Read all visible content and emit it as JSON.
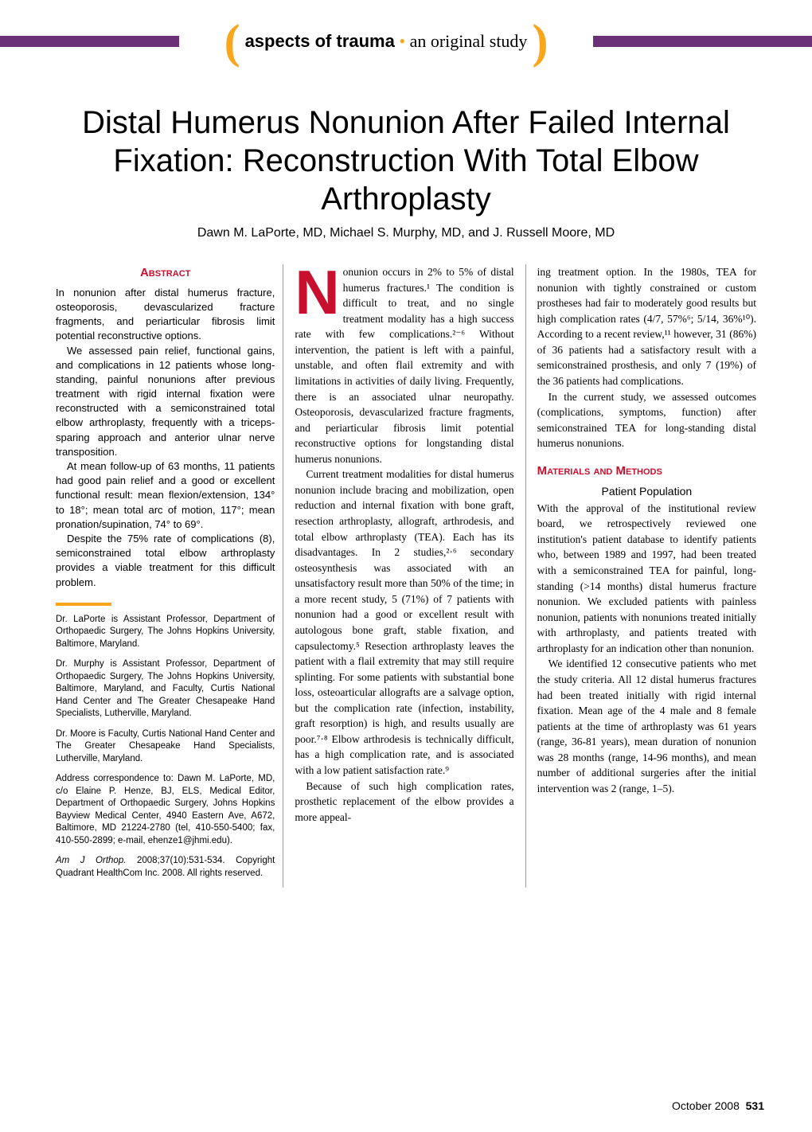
{
  "header": {
    "section_bold": "aspects of trauma",
    "section_light": "an original study",
    "bullet": "•",
    "bar_color": "#6b3077",
    "bracket_color": "#faa61a"
  },
  "title": "Distal Humerus Nonunion After Failed Internal Fixation: Reconstruction With Total Elbow Arthroplasty",
  "authors": "Dawn M. LaPorte, MD, Michael S. Murphy, MD, and J. Russell Moore, MD",
  "abstract": {
    "heading": "Abstract",
    "p1": "In nonunion after distal humerus fracture, osteoporosis, devascularized fracture fragments, and periarticular fibrosis limit potential reconstructive options.",
    "p2": "We assessed pain relief, functional gains, and complications in 12 patients whose long-standing, painful nonunions after previous treatment with rigid internal fixation were reconstructed with a semiconstrained total elbow arthroplasty, frequently with a triceps-sparing approach and anterior ulnar nerve transposition.",
    "p3": "At mean follow-up of 63 months, 11 patients had good pain relief and a good or excellent functional result: mean flexion/extension, 134° to 18°; mean total arc of motion, 117°; mean pronation/supination, 74° to 69°.",
    "p4": "Despite the 75% rate of complications (8), semiconstrained total elbow arthroplasty provides a viable treatment for this difficult problem."
  },
  "affiliations": {
    "a1": "Dr. LaPorte is Assistant Professor, Department of Orthopaedic Surgery, The Johns Hopkins University, Baltimore, Maryland.",
    "a2": "Dr. Murphy is Assistant Professor, Department of Orthopaedic Surgery, The Johns Hopkins University, Baltimore, Maryland, and Faculty, Curtis National Hand Center and The Greater Chesapeake Hand Specialists, Lutherville, Maryland.",
    "a3": "Dr. Moore is Faculty, Curtis National Hand Center and The Greater Chesapeake Hand Specialists, Lutherville, Maryland.",
    "a4": "Address correspondence to: Dawn M. LaPorte, MD, c/o Elaine P. Henze, BJ, ELS, Medical Editor, Department of Orthopaedic Surgery, Johns Hopkins Bayview Medical Center, 4940 Eastern Ave, A672, Baltimore, MD 21224-2780 (tel, 410-550-5400; fax, 410-550-2899; e-mail, ehenze1@jhmi.edu).",
    "a5_cite": "Am J Orthop.",
    "a5_rest": " 2008;37(10):531-534. Copyright Quadrant HealthCom Inc. 2008. All rights reserved."
  },
  "body": {
    "dropcap": "N",
    "mid_p1": "onunion occurs in 2% to 5% of distal humerus fractures.¹ The condition is difficult to treat, and no single treatment modality has a high success rate with few complications.²⁻⁶ Without intervention, the patient is left with a painful, unstable, and often flail extremity and with limitations in activities of daily living. Frequently, there is an associated ulnar neuropathy. Osteoporosis, devascularized fracture fragments, and periarticular fibrosis limit potential reconstructive options for longstanding distal humerus nonunions.",
    "mid_p2": "Current treatment modalities for distal humerus nonunion include bracing and mobilization, open reduction and internal fixation with bone graft, resection arthroplasty, allograft, arthrodesis, and total elbow arthroplasty (TEA). Each has its disadvantages. In 2 studies,²·⁶ secondary osteosynthesis was associated with an unsatisfactory result more than 50% of the time; in a more recent study, 5 (71%) of 7 patients with nonunion had a good or excellent result with autologous bone graft, stable fixation, and capsulectomy.⁵ Resection arthroplasty leaves the patient with a flail extremity that may still require splinting. For some patients with substantial bone loss, osteoarticular allografts are a salvage option, but the complication rate (infection, instability, graft resorption) is high, and results usually are poor.⁷·⁸ Elbow arthrodesis is technically difficult, has a high complication rate, and is associated with a low patient satisfaction rate.⁹",
    "mid_p3": "Because of such high complication rates, prosthetic replacement of the elbow provides a more appeal-",
    "right_p1": "ing treatment option. In the 1980s, TEA for nonunion with tightly constrained or custom prostheses had fair to moderately good results but high complication rates (4/7, 57%⁶; 5/14, 36%¹⁰). According to a recent review,¹¹ however, 31 (86%) of 36 patients had a satisfactory result with a semiconstrained prosthesis, and only 7 (19%) of the 36 patients had complications.",
    "right_p2": "In the current study, we assessed outcomes (complications, symptoms, function) after semiconstrained TEA for long-standing distal humerus nonunions.",
    "section_heading": "Materials and Methods",
    "subheading": "Patient Population",
    "right_p3": "With the approval of the institutional review board, we retrospectively reviewed one institution's patient database to identify patients who, between 1989 and 1997, had been treated with a semiconstrained TEA for painful, long-standing (>14 months) distal humerus fracture nonunion. We excluded patients with painless nonunion, patients with nonunions treated initially with arthroplasty, and patients treated with arthroplasty for an indication other than nonunion.",
    "right_p4": "We identified 12 consecutive patients who met the study criteria. All 12 distal humerus fractures had been treated initially with rigid internal fixation. Mean age of the 4 male and 8 female patients at the time of arthroplasty was 61 years (range, 36-81 years), mean duration of nonunion was 28 months (range, 14-96 months), and mean number of additional surgeries after the initial intervention was 2 (range, 1–5)."
  },
  "footer": {
    "date": "October 2008",
    "page": "531"
  },
  "colors": {
    "red": "#c8102e",
    "orange": "#faa61a",
    "purple": "#6b3077"
  }
}
